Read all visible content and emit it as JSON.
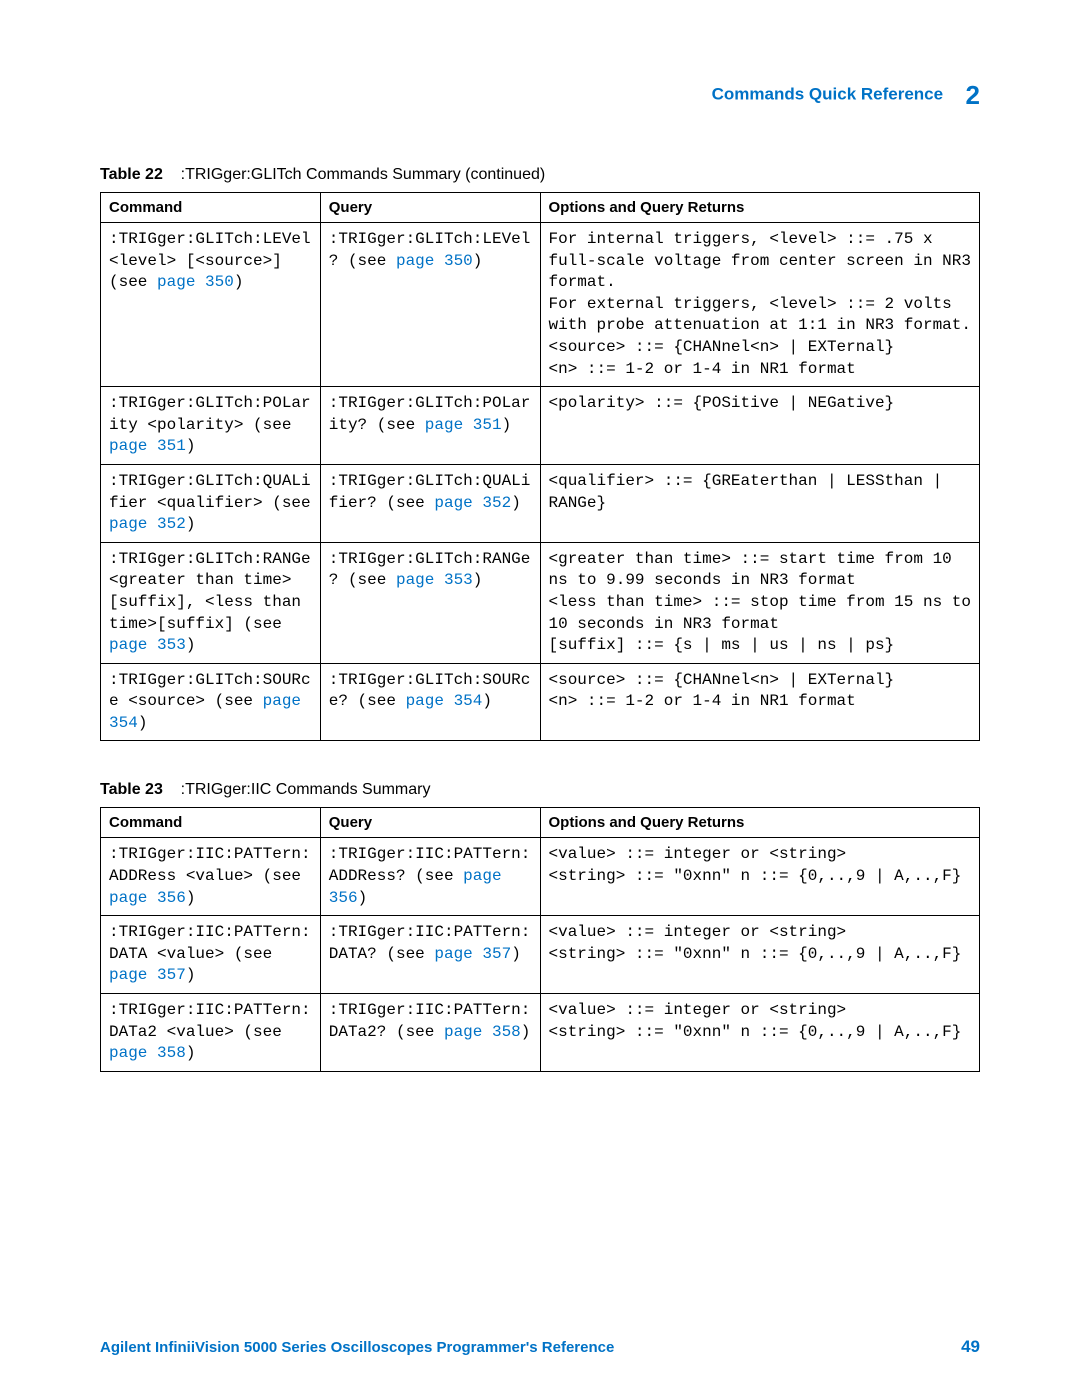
{
  "header": {
    "title": "Commands Quick Reference",
    "chapter": "2"
  },
  "table22": {
    "label": "Table 22",
    "title": ":TRIGger:GLITch Commands Summary (continued)",
    "col_headers": [
      "Command",
      "Query",
      "Options and Query Returns"
    ],
    "rows": [
      {
        "command_pre": ":TRIGger:GLITch:LEVel <level> [<source>] (see ",
        "command_link": "page 350",
        "command_post": ")",
        "query_pre": ":TRIGger:GLITch:LEVel? (see ",
        "query_link": "page 350",
        "query_post": ")",
        "options": "For internal triggers, <level> ::= .75 x full-scale voltage from center screen in NR3 format.\nFor external triggers, <level> ::= 2 volts with probe attenuation at 1:1 in NR3 format.\n<source> ::= {CHANnel<n> | EXTernal}\n<n> ::= 1-2 or 1-4 in NR1 format"
      },
      {
        "command_pre": ":TRIGger:GLITch:POLarity <polarity> (see ",
        "command_link": "page 351",
        "command_post": ")",
        "query_pre": ":TRIGger:GLITch:POLarity? (see ",
        "query_link": "page 351",
        "query_post": ")",
        "options": "<polarity> ::= {POSitive | NEGative}"
      },
      {
        "command_pre": ":TRIGger:GLITch:QUALifier <qualifier> (see ",
        "command_link": "page 352",
        "command_post": ")",
        "query_pre": ":TRIGger:GLITch:QUALifier? (see ",
        "query_link": "page 352",
        "query_post": ")",
        "options": "<qualifier> ::= {GREaterthan | LESSthan | RANGe}"
      },
      {
        "command_pre": ":TRIGger:GLITch:RANGe <greater than time>[suffix], <less than time>[suffix] (see ",
        "command_link": "page 353",
        "command_post": ")",
        "query_pre": ":TRIGger:GLITch:RANGe? (see ",
        "query_link": "page 353",
        "query_post": ")",
        "options": "<greater than time> ::= start time from 10 ns to 9.99 seconds in NR3 format\n<less than time> ::= stop time from 15 ns to 10 seconds in NR3 format\n[suffix] ::= {s | ms | us | ns | ps}"
      },
      {
        "command_pre": ":TRIGger:GLITch:SOURce <source> (see ",
        "command_link": "page 354",
        "command_post": ")",
        "query_pre": ":TRIGger:GLITch:SOURce? (see ",
        "query_link": "page 354",
        "query_post": ")",
        "options": "<source> ::= {CHANnel<n> | EXTernal}\n<n> ::= 1-2 or 1-4 in NR1 format"
      }
    ]
  },
  "table23": {
    "label": "Table 23",
    "title": ":TRIGger:IIC Commands Summary",
    "col_headers": [
      "Command",
      "Query",
      "Options and Query Returns"
    ],
    "rows": [
      {
        "command_pre": ":TRIGger:IIC:PATTern:ADDRess <value> (see ",
        "command_link": "page 356",
        "command_post": ")",
        "query_pre": ":TRIGger:IIC:PATTern:ADDRess? (see ",
        "query_link": "page 356",
        "query_post": ")",
        "options": "<value> ::= integer or <string>\n<string> ::= \"0xnn\" n ::= {0,..,9 | A,..,F}"
      },
      {
        "command_pre": ":TRIGger:IIC:PATTern:DATA <value> (see ",
        "command_link": "page 357",
        "command_post": ")",
        "query_pre": ":TRIGger:IIC:PATTern:DATA? (see ",
        "query_link": "page 357",
        "query_post": ")",
        "options": "<value> ::= integer or <string>\n<string> ::= \"0xnn\" n ::= {0,..,9 | A,..,F}"
      },
      {
        "command_pre": ":TRIGger:IIC:PATTern:DATa2 <value> (see ",
        "command_link": "page 358",
        "command_post": ")",
        "query_pre": ":TRIGger:IIC:PATTern:DATa2? (see ",
        "query_link": "page 358",
        "query_post": ")",
        "options": "<value> ::= integer or <string>\n<string> ::= \"0xnn\" n ::= {0,..,9 | A,..,F}"
      }
    ]
  },
  "footer": {
    "title": "Agilent InfiniiVision 5000 Series Oscilloscopes Programmer's Reference",
    "page": "49"
  },
  "colors": {
    "link": "#0072c6",
    "text": "#000000",
    "border": "#000000"
  }
}
